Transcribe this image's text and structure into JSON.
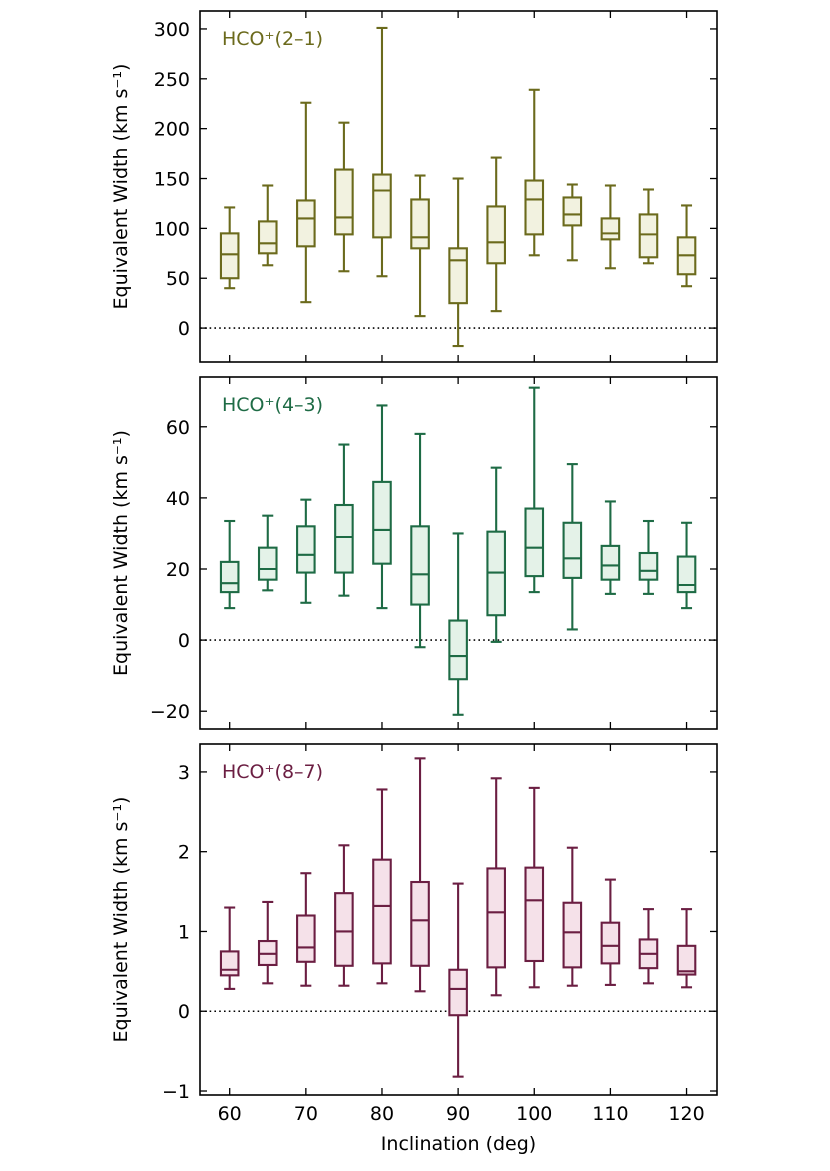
{
  "x_axis_label": "Inclination (deg)",
  "y_axis_label": "Equivalent Width (km s⁻¹)",
  "chart_data": [
    {
      "type": "box",
      "name": "hco-2-1",
      "title": "HCO⁺(2–1)",
      "color": "#6b6a1c",
      "fill": "#f2f2e0",
      "ylim": [
        -34,
        318
      ],
      "yticks": [
        0,
        50,
        100,
        150,
        200,
        250,
        300
      ],
      "ytick_labels": [
        "0",
        "50",
        "100",
        "150",
        "200",
        "250",
        "300"
      ],
      "zero_line": true,
      "categories": [
        60,
        65,
        70,
        75,
        80,
        85,
        90,
        95,
        100,
        105,
        110,
        115,
        120
      ],
      "boxes": [
        {
          "min": 40,
          "q1": 50,
          "median": 74,
          "q3": 95,
          "max": 121
        },
        {
          "min": 63,
          "q1": 75,
          "median": 85,
          "q3": 107,
          "max": 143
        },
        {
          "min": 26,
          "q1": 82,
          "median": 110,
          "q3": 128,
          "max": 226
        },
        {
          "min": 57,
          "q1": 94,
          "median": 111,
          "q3": 159,
          "max": 206
        },
        {
          "min": 52,
          "q1": 91,
          "median": 138,
          "q3": 154,
          "max": 301
        },
        {
          "min": 12,
          "q1": 80,
          "median": 91,
          "q3": 129,
          "max": 153
        },
        {
          "min": -18,
          "q1": 25,
          "median": 68,
          "q3": 80,
          "max": 150
        },
        {
          "min": 17,
          "q1": 65,
          "median": 86,
          "q3": 122,
          "max": 171
        },
        {
          "min": 73,
          "q1": 94,
          "median": 129,
          "q3": 148,
          "max": 239
        },
        {
          "min": 68,
          "q1": 103,
          "median": 114,
          "q3": 131,
          "max": 144
        },
        {
          "min": 60,
          "q1": 89,
          "median": 95,
          "q3": 110,
          "max": 143
        },
        {
          "min": 65,
          "q1": 71,
          "median": 94,
          "q3": 114,
          "max": 139
        },
        {
          "min": 42,
          "q1": 54,
          "median": 73,
          "q3": 91,
          "max": 123
        }
      ]
    },
    {
      "type": "box",
      "name": "hco-4-3",
      "title": "HCO⁺(4–3)",
      "color": "#1e6b45",
      "fill": "#e4f2e8",
      "ylim": [
        -25,
        74
      ],
      "yticks": [
        -20,
        0,
        20,
        40,
        60
      ],
      "ytick_labels": [
        "−20",
        "0",
        "20",
        "40",
        "60"
      ],
      "zero_line": true,
      "categories": [
        60,
        65,
        70,
        75,
        80,
        85,
        90,
        95,
        100,
        105,
        110,
        115,
        120
      ],
      "boxes": [
        {
          "min": 9,
          "q1": 13.5,
          "median": 16,
          "q3": 22,
          "max": 33.5
        },
        {
          "min": 14,
          "q1": 17,
          "median": 20,
          "q3": 26,
          "max": 35
        },
        {
          "min": 10.5,
          "q1": 19,
          "median": 24,
          "q3": 32,
          "max": 39.5
        },
        {
          "min": 12.5,
          "q1": 19,
          "median": 29,
          "q3": 38,
          "max": 55
        },
        {
          "min": 9,
          "q1": 21.5,
          "median": 31,
          "q3": 44.5,
          "max": 66
        },
        {
          "min": -2,
          "q1": 10,
          "median": 18.5,
          "q3": 32,
          "max": 58
        },
        {
          "min": -21,
          "q1": -11,
          "median": -4.5,
          "q3": 5.5,
          "max": 30
        },
        {
          "min": -0.5,
          "q1": 7,
          "median": 19,
          "q3": 30.5,
          "max": 48.5
        },
        {
          "min": 13.5,
          "q1": 18,
          "median": 26,
          "q3": 37,
          "max": 71
        },
        {
          "min": 3,
          "q1": 17.5,
          "median": 23,
          "q3": 33,
          "max": 49.5
        },
        {
          "min": 13,
          "q1": 17,
          "median": 21,
          "q3": 26.5,
          "max": 39
        },
        {
          "min": 13,
          "q1": 17,
          "median": 19.5,
          "q3": 24.5,
          "max": 33.5
        },
        {
          "min": 9,
          "q1": 13.5,
          "median": 15.5,
          "q3": 23.5,
          "max": 33
        }
      ]
    },
    {
      "type": "box",
      "name": "hco-8-7",
      "title": "HCO⁺(8–7)",
      "color": "#6b1e42",
      "fill": "#f5e1e9",
      "ylim": [
        -1.05,
        3.35
      ],
      "yticks": [
        -1,
        0,
        1,
        2,
        3
      ],
      "ytick_labels": [
        "−1",
        "0",
        "1",
        "2",
        "3"
      ],
      "zero_line": true,
      "categories": [
        60,
        65,
        70,
        75,
        80,
        85,
        90,
        95,
        100,
        105,
        110,
        115,
        120
      ],
      "boxes": [
        {
          "min": 0.28,
          "q1": 0.45,
          "median": 0.52,
          "q3": 0.75,
          "max": 1.3
        },
        {
          "min": 0.35,
          "q1": 0.58,
          "median": 0.72,
          "q3": 0.88,
          "max": 1.37
        },
        {
          "min": 0.32,
          "q1": 0.62,
          "median": 0.8,
          "q3": 1.2,
          "max": 1.73
        },
        {
          "min": 0.32,
          "q1": 0.57,
          "median": 1.0,
          "q3": 1.48,
          "max": 2.08
        },
        {
          "min": 0.35,
          "q1": 0.6,
          "median": 1.32,
          "q3": 1.9,
          "max": 2.78
        },
        {
          "min": 0.25,
          "q1": 0.57,
          "median": 1.14,
          "q3": 1.62,
          "max": 3.17
        },
        {
          "min": -0.82,
          "q1": -0.05,
          "median": 0.28,
          "q3": 0.52,
          "max": 1.6
        },
        {
          "min": 0.2,
          "q1": 0.55,
          "median": 1.24,
          "q3": 1.79,
          "max": 2.92
        },
        {
          "min": 0.3,
          "q1": 0.63,
          "median": 1.39,
          "q3": 1.8,
          "max": 2.8
        },
        {
          "min": 0.32,
          "q1": 0.55,
          "median": 0.99,
          "q3": 1.36,
          "max": 2.05
        },
        {
          "min": 0.33,
          "q1": 0.6,
          "median": 0.82,
          "q3": 1.11,
          "max": 1.65
        },
        {
          "min": 0.35,
          "q1": 0.54,
          "median": 0.72,
          "q3": 0.9,
          "max": 1.28
        },
        {
          "min": 0.3,
          "q1": 0.46,
          "median": 0.5,
          "q3": 0.82,
          "max": 1.28
        }
      ]
    }
  ]
}
